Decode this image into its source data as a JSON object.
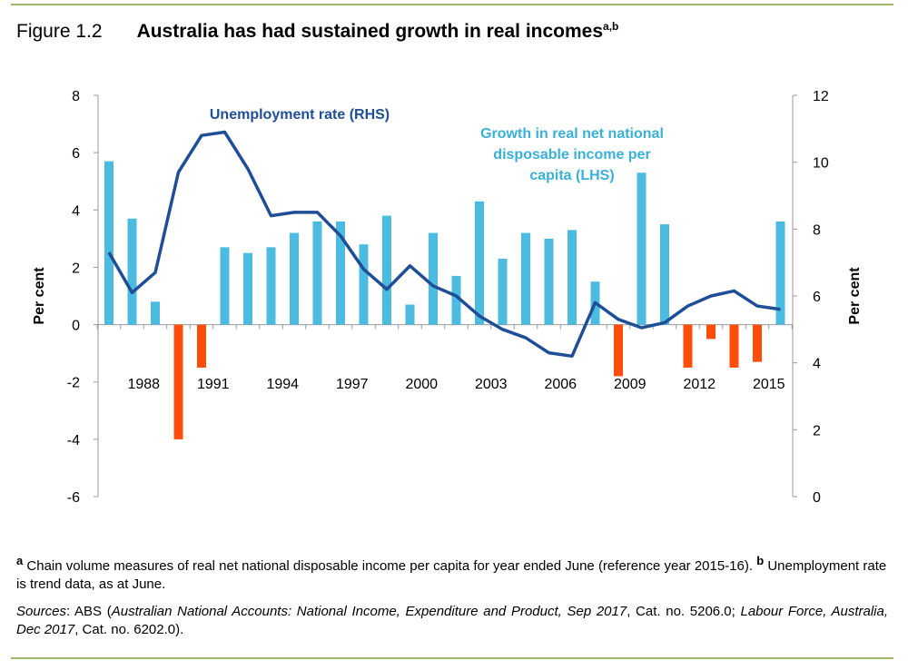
{
  "figure_label": "Figure 1.2",
  "chart_data": {
    "type": "bar",
    "title": "Australia has had sustained growth in real incomes",
    "title_superscript": "a,b",
    "ylabel": "Per cent",
    "y2label": "Per cent",
    "ylim": [
      -6,
      8
    ],
    "y2lim": [
      0,
      12
    ],
    "yticks": [
      8,
      6,
      4,
      2,
      0,
      -2,
      -4,
      -6
    ],
    "y2ticks": [
      12,
      10,
      8,
      6,
      4,
      2,
      0
    ],
    "categories": [
      1987,
      1988,
      1989,
      1990,
      1991,
      1992,
      1993,
      1994,
      1995,
      1996,
      1997,
      1998,
      1999,
      2000,
      2001,
      2002,
      2003,
      2004,
      2005,
      2006,
      2007,
      2008,
      2009,
      2010,
      2011,
      2012,
      2013,
      2014,
      2015,
      2016
    ],
    "xtick_labels": [
      "1988",
      "1991",
      "1994",
      "1997",
      "2000",
      "2003",
      "2006",
      "2009",
      "2012",
      "2015"
    ],
    "series": [
      {
        "name": "Growth in real net national disposable income per capita (LHS)",
        "label_lines": [
          "Growth in real net national",
          "disposable income per",
          "capita (LHS)"
        ],
        "type": "bar",
        "axis": "left",
        "color_positive": "#4bbbe0",
        "color_negative": "#ff4e0a",
        "values": [
          5.7,
          3.7,
          0.8,
          -4.0,
          -1.5,
          2.7,
          2.5,
          2.7,
          3.2,
          3.6,
          3.6,
          2.8,
          3.8,
          0.7,
          3.2,
          1.7,
          4.3,
          2.3,
          3.2,
          3.0,
          3.3,
          1.5,
          -1.8,
          5.3,
          3.5,
          -1.5,
          -0.5,
          -1.5,
          -1.3,
          3.6
        ]
      },
      {
        "name": "Unemployment rate (RHS)",
        "type": "line",
        "axis": "right",
        "color": "#1f4e96",
        "values": [
          7.3,
          6.1,
          6.7,
          9.7,
          10.8,
          10.9,
          9.8,
          8.4,
          8.5,
          8.5,
          7.8,
          6.8,
          6.2,
          6.9,
          6.3,
          6.0,
          5.4,
          5.0,
          4.75,
          4.3,
          4.2,
          5.8,
          5.3,
          5.05,
          5.2,
          5.7,
          6.0,
          6.15,
          5.7,
          5.6
        ]
      }
    ]
  },
  "notes": {
    "a_mark": "a",
    "a_text": " Chain volume measures of real net national disposable income per capita for year ended June (reference year 2015-16). ",
    "b_mark": "b",
    "b_text": " Unemployment rate is trend data, as at June.",
    "sources_label": "Sources",
    "sources_1": ": ABS (",
    "sources_2": "Australian National Accounts: National Income, Expenditure and Product, Sep 2017",
    "sources_3": ", Cat. no. 5206.0; ",
    "sources_4": "Labour Force, Australia, Dec 2017",
    "sources_5": ", Cat. no. 6202.0)."
  }
}
